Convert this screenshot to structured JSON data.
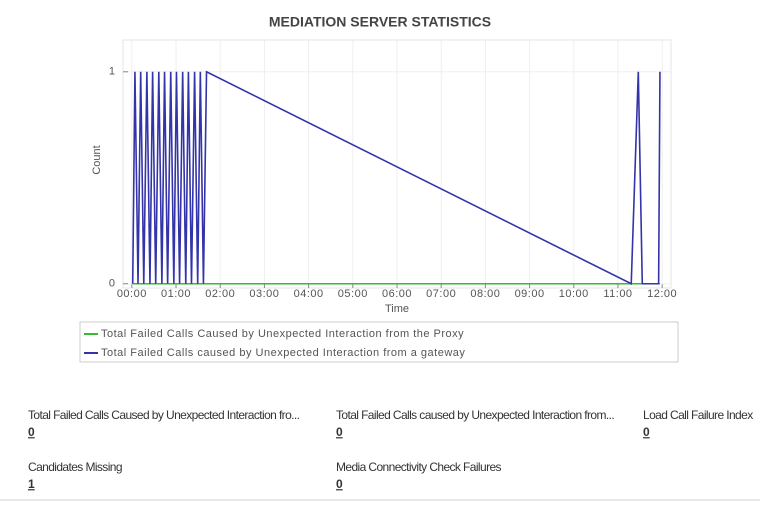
{
  "chart_data": {
    "type": "line",
    "title": "MEDIATION SERVER STATISTICS",
    "x_label": "Time",
    "y_label": "Count",
    "xlim": [
      -0.2,
      12.2
    ],
    "xticks": [
      {
        "value": 0,
        "label": "00:00"
      },
      {
        "value": 1,
        "label": "01:00"
      },
      {
        "value": 2,
        "label": "02:00"
      },
      {
        "value": 3,
        "label": "03:00"
      },
      {
        "value": 4,
        "label": "04:00"
      },
      {
        "value": 5,
        "label": "05:00"
      },
      {
        "value": 6,
        "label": "06:00"
      },
      {
        "value": 7,
        "label": "07:00"
      },
      {
        "value": 8,
        "label": "08:00"
      },
      {
        "value": 9,
        "label": "09:00"
      },
      {
        "value": 10,
        "label": "10:00"
      },
      {
        "value": 11,
        "label": "11:00"
      },
      {
        "value": 12,
        "label": "12:00"
      }
    ],
    "ylim": [
      -0.02,
      1.15
    ],
    "yticks": [
      0,
      1
    ],
    "grid": true,
    "series": [
      {
        "name": "Total Failed Calls Caused by Unexpected Interaction from the Proxy",
        "color": "#33bb33",
        "x": [
          0.02,
          11.95
        ],
        "values": [
          0,
          0
        ]
      },
      {
        "name": "Total Failed Calls caused by Unexpected Interaction from a gateway",
        "color": "#3333aa",
        "x": [
          0.02,
          0.07,
          0.14,
          0.2,
          0.27,
          0.34,
          0.41,
          0.47,
          0.54,
          0.61,
          0.68,
          0.74,
          0.81,
          0.88,
          0.95,
          1.01,
          1.08,
          1.15,
          1.22,
          1.28,
          1.35,
          1.42,
          1.49,
          1.55,
          1.62,
          1.69,
          11.3,
          11.46,
          11.55,
          11.92,
          11.95
        ],
        "values": [
          0,
          1,
          0,
          1,
          0,
          1,
          0,
          1,
          0,
          1,
          0,
          1,
          0,
          1,
          0,
          1,
          0,
          1,
          0,
          1,
          0,
          1,
          0,
          1,
          0,
          1,
          0,
          1,
          0,
          0,
          1
        ]
      }
    ]
  },
  "stats": [
    {
      "label": "Total Failed Calls Caused by Unexpected Interaction fro...",
      "value": 0
    },
    {
      "label": "Total Failed Calls caused by Unexpected Interaction from...",
      "value": 0
    },
    {
      "label": "Load Call Failure Index",
      "value": 0
    },
    {
      "label": "Candidates Missing",
      "value": 1
    },
    {
      "label": "Media Connectivity Check Failures",
      "value": 0
    }
  ]
}
